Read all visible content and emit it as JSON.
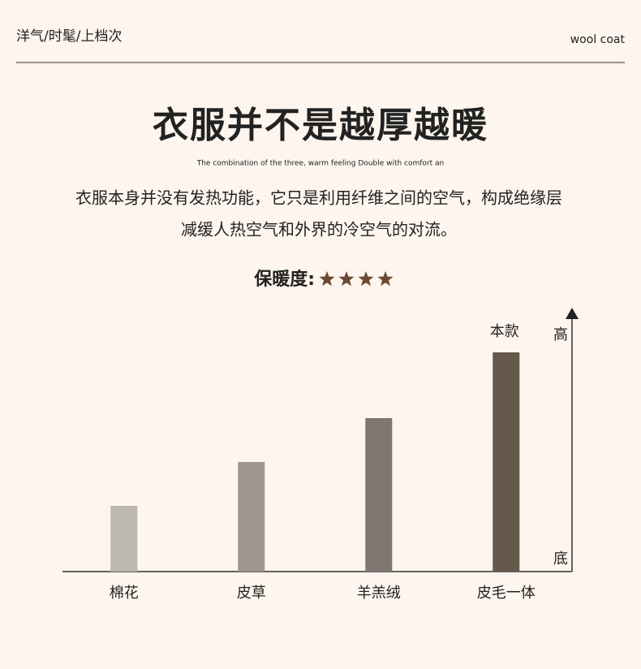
{
  "header": {
    "tagline": "洋气/时髦/上档次",
    "brand": "wool coat"
  },
  "title": "衣服并不是越厚越暖",
  "subtitle": "The combination of the three, warm feeling Double with comfort an",
  "description": [
    "衣服本身并没有发热功能，它只是利用纤维之间的空气，构成绝缘层",
    "减缓人热空气和外界的冷空气的对流。"
  ],
  "rating_label": "保暖度:",
  "rating": 4,
  "star_color": "#6b4a35",
  "chart_data": {
    "type": "bar",
    "categories": [
      "棉花",
      "皮草",
      "羊羔绒",
      "皮毛一体"
    ],
    "values": [
      30,
      50,
      70,
      100
    ],
    "colors": [
      "#bcb7b0",
      "#a0958f",
      "#807671",
      "#67584c"
    ],
    "annotation": "本款",
    "y_high_label": "高",
    "y_low_label": "底",
    "ylim": [
      0,
      120
    ]
  }
}
